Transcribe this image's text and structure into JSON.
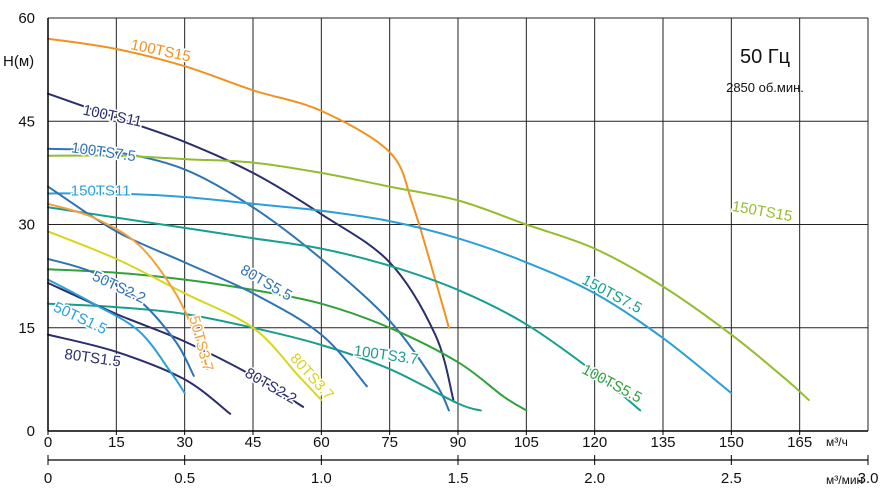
{
  "chart_data": {
    "type": "line",
    "title": "50 Гц",
    "subtitle": "2850 об.мин.",
    "ylabel": "H(м)",
    "xlabel": "м³/ч",
    "x2label": "м³/мин",
    "xlim": [
      0,
      180
    ],
    "ylim": [
      0,
      60
    ],
    "x_ticks": [
      "0",
      "15",
      "30",
      "45",
      "60",
      "75",
      "90",
      "105",
      "120",
      "135",
      "150",
      "165"
    ],
    "x_tick_values": [
      0,
      15,
      30,
      45,
      60,
      75,
      90,
      105,
      120,
      135,
      150,
      165
    ],
    "y_ticks": [
      "0",
      "15",
      "30",
      "45",
      "60"
    ],
    "y_tick_values": [
      0,
      15,
      30,
      45,
      60
    ],
    "x2_ticks": [
      "0",
      "0.5",
      "1.0",
      "1.5",
      "2.0",
      "2.5",
      "3.0"
    ],
    "x2_tick_values": [
      0,
      0.5,
      1.0,
      1.5,
      2.0,
      2.5,
      3.0
    ],
    "grid": true,
    "series": [
      {
        "name": "100TS15",
        "color": "#f0921e",
        "x": [
          0,
          15,
          30,
          45,
          60,
          75,
          80,
          85,
          88
        ],
        "y": [
          57,
          55.5,
          53,
          49.5,
          46.5,
          40.5,
          33,
          22,
          15
        ],
        "label_x": 18,
        "label_y": 55.5,
        "label_rot": 12
      },
      {
        "name": "100TS11",
        "color": "#2b2e6e",
        "x": [
          0,
          15,
          30,
          45,
          60,
          75,
          85,
          89
        ],
        "y": [
          49,
          45.5,
          42,
          37.5,
          31.5,
          24.5,
          14,
          4.5
        ],
        "label_x": 7.5,
        "label_y": 46,
        "label_rot": 12
      },
      {
        "name": "100TS7.5",
        "color": "#2e74b5",
        "x": [
          0,
          15,
          30,
          45,
          60,
          75,
          85,
          88
        ],
        "y": [
          41,
          40.5,
          38,
          32.5,
          25,
          16,
          7,
          3
        ],
        "label_x": 5,
        "label_y": 40.5,
        "label_rot": 8
      },
      {
        "name": "150TS11",
        "color": "#2aa0d8",
        "x": [
          0,
          15,
          30,
          45,
          60,
          75,
          90,
          105,
          120,
          135,
          150
        ],
        "y": [
          34.5,
          34.5,
          34,
          33,
          32,
          30.5,
          28,
          24.5,
          20,
          13.5,
          5.5
        ],
        "label_x": 5,
        "label_y": 34.2,
        "label_rot": 0
      },
      {
        "name": "150TS15",
        "color": "#94bd2e",
        "x": [
          0,
          15,
          30,
          45,
          60,
          75,
          90,
          105,
          120,
          135,
          150,
          162,
          167
        ],
        "y": [
          40,
          40,
          39.5,
          39,
          37.5,
          35.5,
          33.5,
          30,
          26.5,
          21,
          14,
          7.5,
          4.5
        ],
        "label_x": 150,
        "label_y": 32,
        "label_rot": 10
      },
      {
        "name": "150TS7.5",
        "color": "#15a091",
        "x": [
          0,
          15,
          30,
          45,
          60,
          75,
          90,
          105,
          120,
          130
        ],
        "y": [
          32.5,
          31,
          29.5,
          28,
          26.5,
          24,
          20.5,
          15.5,
          8.5,
          3
        ],
        "label_x": 117,
        "label_y": 21.5,
        "label_rot": 28
      },
      {
        "name": "100TS5.5",
        "color": "#2fa23a",
        "x": [
          0,
          15,
          30,
          45,
          60,
          75,
          90,
          100,
          105
        ],
        "y": [
          23.5,
          23,
          22,
          20.5,
          18.5,
          15,
          10,
          5,
          3
        ],
        "label_x": 117,
        "label_y": 8.5,
        "label_rot": 28
      },
      {
        "name": "100TS3.7",
        "color": "#1a9e8c",
        "x": [
          0,
          15,
          30,
          45,
          60,
          75,
          90,
          95
        ],
        "y": [
          18.5,
          18,
          17,
          15,
          12.5,
          9,
          4,
          3
        ],
        "label_x": 67,
        "label_y": 11,
        "label_rot": 8
      },
      {
        "name": "80TS5.5",
        "color": "#2e74b5",
        "x": [
          0,
          15,
          30,
          45,
          60,
          70
        ],
        "y": [
          35.5,
          29,
          24.5,
          20,
          14,
          6.5
        ],
        "label_x": 42,
        "label_y": 23,
        "label_rot": 30
      },
      {
        "name": "80TS3.7",
        "color": "#d8d51b",
        "x": [
          0,
          15,
          30,
          45,
          55,
          60
        ],
        "y": [
          29,
          25,
          20,
          15,
          8,
          4.5
        ],
        "label_x": 53,
        "label_y": 10.5,
        "label_rot": 48
      },
      {
        "name": "80TS2.2",
        "color": "#2b2e6e",
        "x": [
          0,
          15,
          30,
          45,
          56
        ],
        "y": [
          21.5,
          17,
          13,
          8,
          3.5
        ],
        "label_x": 43,
        "label_y": 8,
        "label_rot": 30
      },
      {
        "name": "80TS1.5",
        "color": "#2b2e6e",
        "x": [
          0,
          15,
          30,
          40
        ],
        "y": [
          14,
          11.5,
          7.5,
          2.5
        ],
        "label_x": 3.5,
        "label_y": 10.5,
        "label_rot": 8
      },
      {
        "name": "50TS3.7",
        "color": "#f0a23a",
        "x": [
          0,
          10,
          20,
          28,
          33,
          35
        ],
        "y": [
          33,
          31,
          27,
          20,
          13,
          9
        ],
        "label_x": 31,
        "label_y": 16.5,
        "label_rot": 75
      },
      {
        "name": "50TS2.2",
        "color": "#2e74b5",
        "x": [
          0,
          10,
          20,
          28,
          32
        ],
        "y": [
          25,
          23,
          19,
          13,
          8
        ],
        "label_x": 9.5,
        "label_y": 22,
        "label_rot": 25
      },
      {
        "name": "50TS1.5",
        "color": "#2aa0d8",
        "x": [
          0,
          10,
          20,
          27,
          30
        ],
        "y": [
          22,
          18.5,
          14.5,
          8.5,
          5.5
        ],
        "label_x": 1,
        "label_y": 17.5,
        "label_rot": 25
      }
    ]
  }
}
